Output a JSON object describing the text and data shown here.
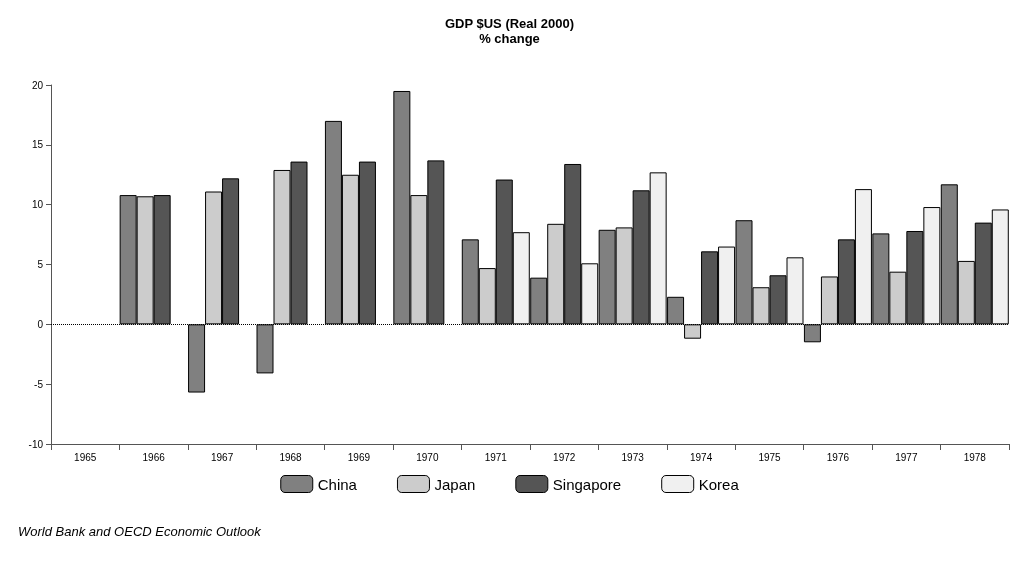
{
  "chart_data": {
    "type": "bar",
    "title": "GDP $US (Real 2000)",
    "subtitle": "% change",
    "categories": [
      "1965",
      "1966",
      "1967",
      "1968",
      "1969",
      "1970",
      "1971",
      "1972",
      "1973",
      "1974",
      "1975",
      "1976",
      "1977",
      "1978"
    ],
    "series": [
      {
        "name": "China",
        "color": "#808080",
        "values": [
          null,
          10.8,
          -5.7,
          -4.1,
          17.0,
          19.5,
          7.1,
          3.9,
          7.9,
          2.3,
          8.7,
          -1.5,
          7.6,
          11.7
        ]
      },
      {
        "name": "Japan",
        "color": "#cccccc",
        "values": [
          null,
          10.7,
          11.1,
          12.9,
          12.5,
          10.8,
          4.7,
          8.4,
          8.1,
          -1.2,
          3.1,
          4.0,
          4.4,
          5.3
        ]
      },
      {
        "name": "Singapore",
        "color": "#555555",
        "values": [
          null,
          10.8,
          12.2,
          13.6,
          13.6,
          13.7,
          12.1,
          13.4,
          11.2,
          6.1,
          4.1,
          7.1,
          7.8,
          8.5
        ]
      },
      {
        "name": "Korea",
        "color": "#f0f0f0",
        "values": [
          null,
          null,
          null,
          null,
          null,
          null,
          7.7,
          5.1,
          12.7,
          6.5,
          5.6,
          11.3,
          9.8,
          9.6
        ]
      }
    ],
    "ylim": [
      -10,
      20
    ],
    "yticks": [
      -10,
      -5,
      0,
      5,
      10,
      15,
      20
    ],
    "grid": false,
    "legend": "bottom",
    "ref_lines": [
      {
        "axis": "y",
        "value": 0,
        "color": "#000000",
        "line_style": "dotted"
      }
    ],
    "annotations": [
      "World Bank and OECD Economic Outlook"
    ]
  }
}
